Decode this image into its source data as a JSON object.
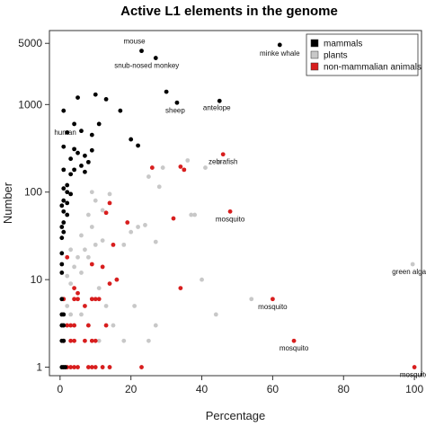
{
  "colors": {
    "mammals": "#000000",
    "plants": "#c8c8c8",
    "non_mammalian": "#d81e1e"
  },
  "chart_data": {
    "type": "scatter",
    "title": "Active L1 elements in the genome",
    "xlabel": "Percentage",
    "ylabel": "Number",
    "xlim": [
      -3,
      102
    ],
    "ylim": [
      0.8,
      7000
    ],
    "y_scale": "log",
    "x_ticks": [
      0,
      20,
      40,
      60,
      80,
      100
    ],
    "x_tick_labels": [
      "0",
      "20",
      "40",
      "60",
      "80",
      "100"
    ],
    "y_ticks": [
      1,
      10,
      100,
      1000,
      5000
    ],
    "y_tick_labels": [
      "1",
      "10",
      "100",
      "1000",
      "5000"
    ],
    "grid": false,
    "legend_position": "top-right",
    "legend": [
      {
        "label": "mammals",
        "series": "mammals"
      },
      {
        "label": "plants",
        "series": "plants"
      },
      {
        "label": "non-mammalian animals",
        "series": "non_mammalian"
      }
    ],
    "series": [
      {
        "name": "mammals",
        "color": "#000000",
        "points": [
          [
            62,
            4800
          ],
          [
            23,
            4100
          ],
          [
            27,
            3400
          ],
          [
            30,
            1400
          ],
          [
            33,
            1050
          ],
          [
            45,
            1100
          ],
          [
            5,
            1200
          ],
          [
            10,
            1300
          ],
          [
            13,
            1150
          ],
          [
            1,
            850
          ],
          [
            4,
            600
          ],
          [
            6,
            500
          ],
          [
            9,
            450
          ],
          [
            11,
            600
          ],
          [
            17,
            850
          ],
          [
            20,
            400
          ],
          [
            22,
            340
          ],
          [
            2,
            480
          ],
          [
            4,
            310
          ],
          [
            7,
            260
          ],
          [
            9,
            300
          ],
          [
            1,
            330
          ],
          [
            3,
            240
          ],
          [
            5,
            280
          ],
          [
            6,
            200
          ],
          [
            8,
            220
          ],
          [
            1,
            180
          ],
          [
            3,
            160
          ],
          [
            4,
            180
          ],
          [
            7,
            170
          ],
          [
            2,
            120
          ],
          [
            1,
            110
          ],
          [
            2,
            100
          ],
          [
            3,
            95
          ],
          [
            1,
            80
          ],
          [
            2,
            75
          ],
          [
            0.5,
            70
          ],
          [
            1,
            60
          ],
          [
            2,
            55
          ],
          [
            1,
            45
          ],
          [
            0.5,
            40
          ],
          [
            1,
            35
          ],
          [
            0.5,
            30
          ],
          [
            0.5,
            20
          ],
          [
            0.5,
            15
          ],
          [
            0.5,
            12
          ],
          [
            0.5,
            6
          ],
          [
            0.5,
            4
          ],
          [
            1,
            4
          ],
          [
            0.5,
            3
          ],
          [
            1,
            3
          ],
          [
            0.5,
            2
          ],
          [
            1,
            2
          ],
          [
            0.5,
            1
          ],
          [
            1,
            1
          ],
          [
            1.5,
            1
          ]
        ]
      },
      {
        "name": "plants",
        "color": "#c8c8c8",
        "points": [
          [
            99.5,
            15
          ],
          [
            25,
            150
          ],
          [
            29,
            190
          ],
          [
            28,
            115
          ],
          [
            36,
            230
          ],
          [
            41,
            190
          ],
          [
            45,
            220
          ],
          [
            37,
            55
          ],
          [
            38,
            55
          ],
          [
            20,
            35
          ],
          [
            22,
            40
          ],
          [
            24,
            42
          ],
          [
            27,
            27
          ],
          [
            18,
            25
          ],
          [
            9,
            100
          ],
          [
            10,
            80
          ],
          [
            12,
            62
          ],
          [
            14,
            95
          ],
          [
            8,
            55
          ],
          [
            9,
            40
          ],
          [
            6,
            32
          ],
          [
            7,
            22
          ],
          [
            8,
            18
          ],
          [
            10,
            25
          ],
          [
            12,
            28
          ],
          [
            3,
            22
          ],
          [
            5,
            18
          ],
          [
            4,
            14
          ],
          [
            6,
            12
          ],
          [
            2,
            11
          ],
          [
            3,
            9
          ],
          [
            16,
            10
          ],
          [
            40,
            10
          ],
          [
            54,
            6
          ],
          [
            44,
            4
          ],
          [
            27,
            3
          ],
          [
            21,
            5
          ],
          [
            25,
            2
          ],
          [
            18,
            2
          ],
          [
            1,
            6
          ],
          [
            2,
            5
          ],
          [
            3,
            4
          ],
          [
            0.5,
            4
          ],
          [
            12,
            1
          ],
          [
            14,
            1
          ],
          [
            11,
            2
          ],
          [
            8,
            3
          ],
          [
            6,
            4
          ],
          [
            4,
            3
          ],
          [
            15,
            3
          ],
          [
            9,
            6
          ],
          [
            11,
            8
          ],
          [
            13,
            5
          ]
        ]
      },
      {
        "name": "non-mammalian animals",
        "color": "#d81e1e",
        "points": [
          [
            46,
            270
          ],
          [
            34,
            195
          ],
          [
            35,
            180
          ],
          [
            26,
            190
          ],
          [
            48,
            60
          ],
          [
            100,
            1
          ],
          [
            60,
            6
          ],
          [
            66,
            2
          ],
          [
            32,
            50
          ],
          [
            14,
            75
          ],
          [
            13,
            58
          ],
          [
            19,
            45
          ],
          [
            15,
            25
          ],
          [
            2,
            18
          ],
          [
            9,
            15
          ],
          [
            12,
            14
          ],
          [
            14,
            9
          ],
          [
            16,
            10
          ],
          [
            34,
            8
          ],
          [
            4,
            8
          ],
          [
            5,
            7
          ],
          [
            1,
            6
          ],
          [
            4,
            6
          ],
          [
            5,
            6
          ],
          [
            9,
            6
          ],
          [
            10,
            6
          ],
          [
            11,
            6
          ],
          [
            7,
            5
          ],
          [
            13,
            3
          ],
          [
            2,
            3
          ],
          [
            3,
            3
          ],
          [
            4,
            3
          ],
          [
            8,
            3
          ],
          [
            1,
            2
          ],
          [
            3,
            2
          ],
          [
            4,
            2
          ],
          [
            7,
            2
          ],
          [
            9,
            2
          ],
          [
            10,
            2
          ],
          [
            2,
            1
          ],
          [
            3,
            1
          ],
          [
            4,
            1
          ],
          [
            5,
            1
          ],
          [
            8,
            1
          ],
          [
            9,
            1
          ],
          [
            10,
            1
          ],
          [
            12,
            1
          ],
          [
            14,
            1
          ],
          [
            23,
            1
          ]
        ]
      }
    ],
    "annotations": [
      {
        "text": "mouse",
        "x": 23,
        "y": 4100
      },
      {
        "text": "minke whale",
        "x": 62,
        "y": 4800
      },
      {
        "text": "snub-nosed monkey",
        "x": 27,
        "y": 3400
      },
      {
        "text": "sheep",
        "x": 33,
        "y": 1050
      },
      {
        "text": "antelope",
        "x": 45,
        "y": 1100
      },
      {
        "text": "human",
        "x": 4,
        "y": 600
      },
      {
        "text": "zebrafish",
        "x": 46,
        "y": 270
      },
      {
        "text": "mosquito",
        "x": 48,
        "y": 60
      },
      {
        "text": "green alga",
        "x": 99.5,
        "y": 15
      },
      {
        "text": "mosquito",
        "x": 60,
        "y": 6
      },
      {
        "text": "mosquito",
        "x": 66,
        "y": 2
      },
      {
        "text": "mosquito",
        "x": 100,
        "y": 1
      }
    ]
  }
}
